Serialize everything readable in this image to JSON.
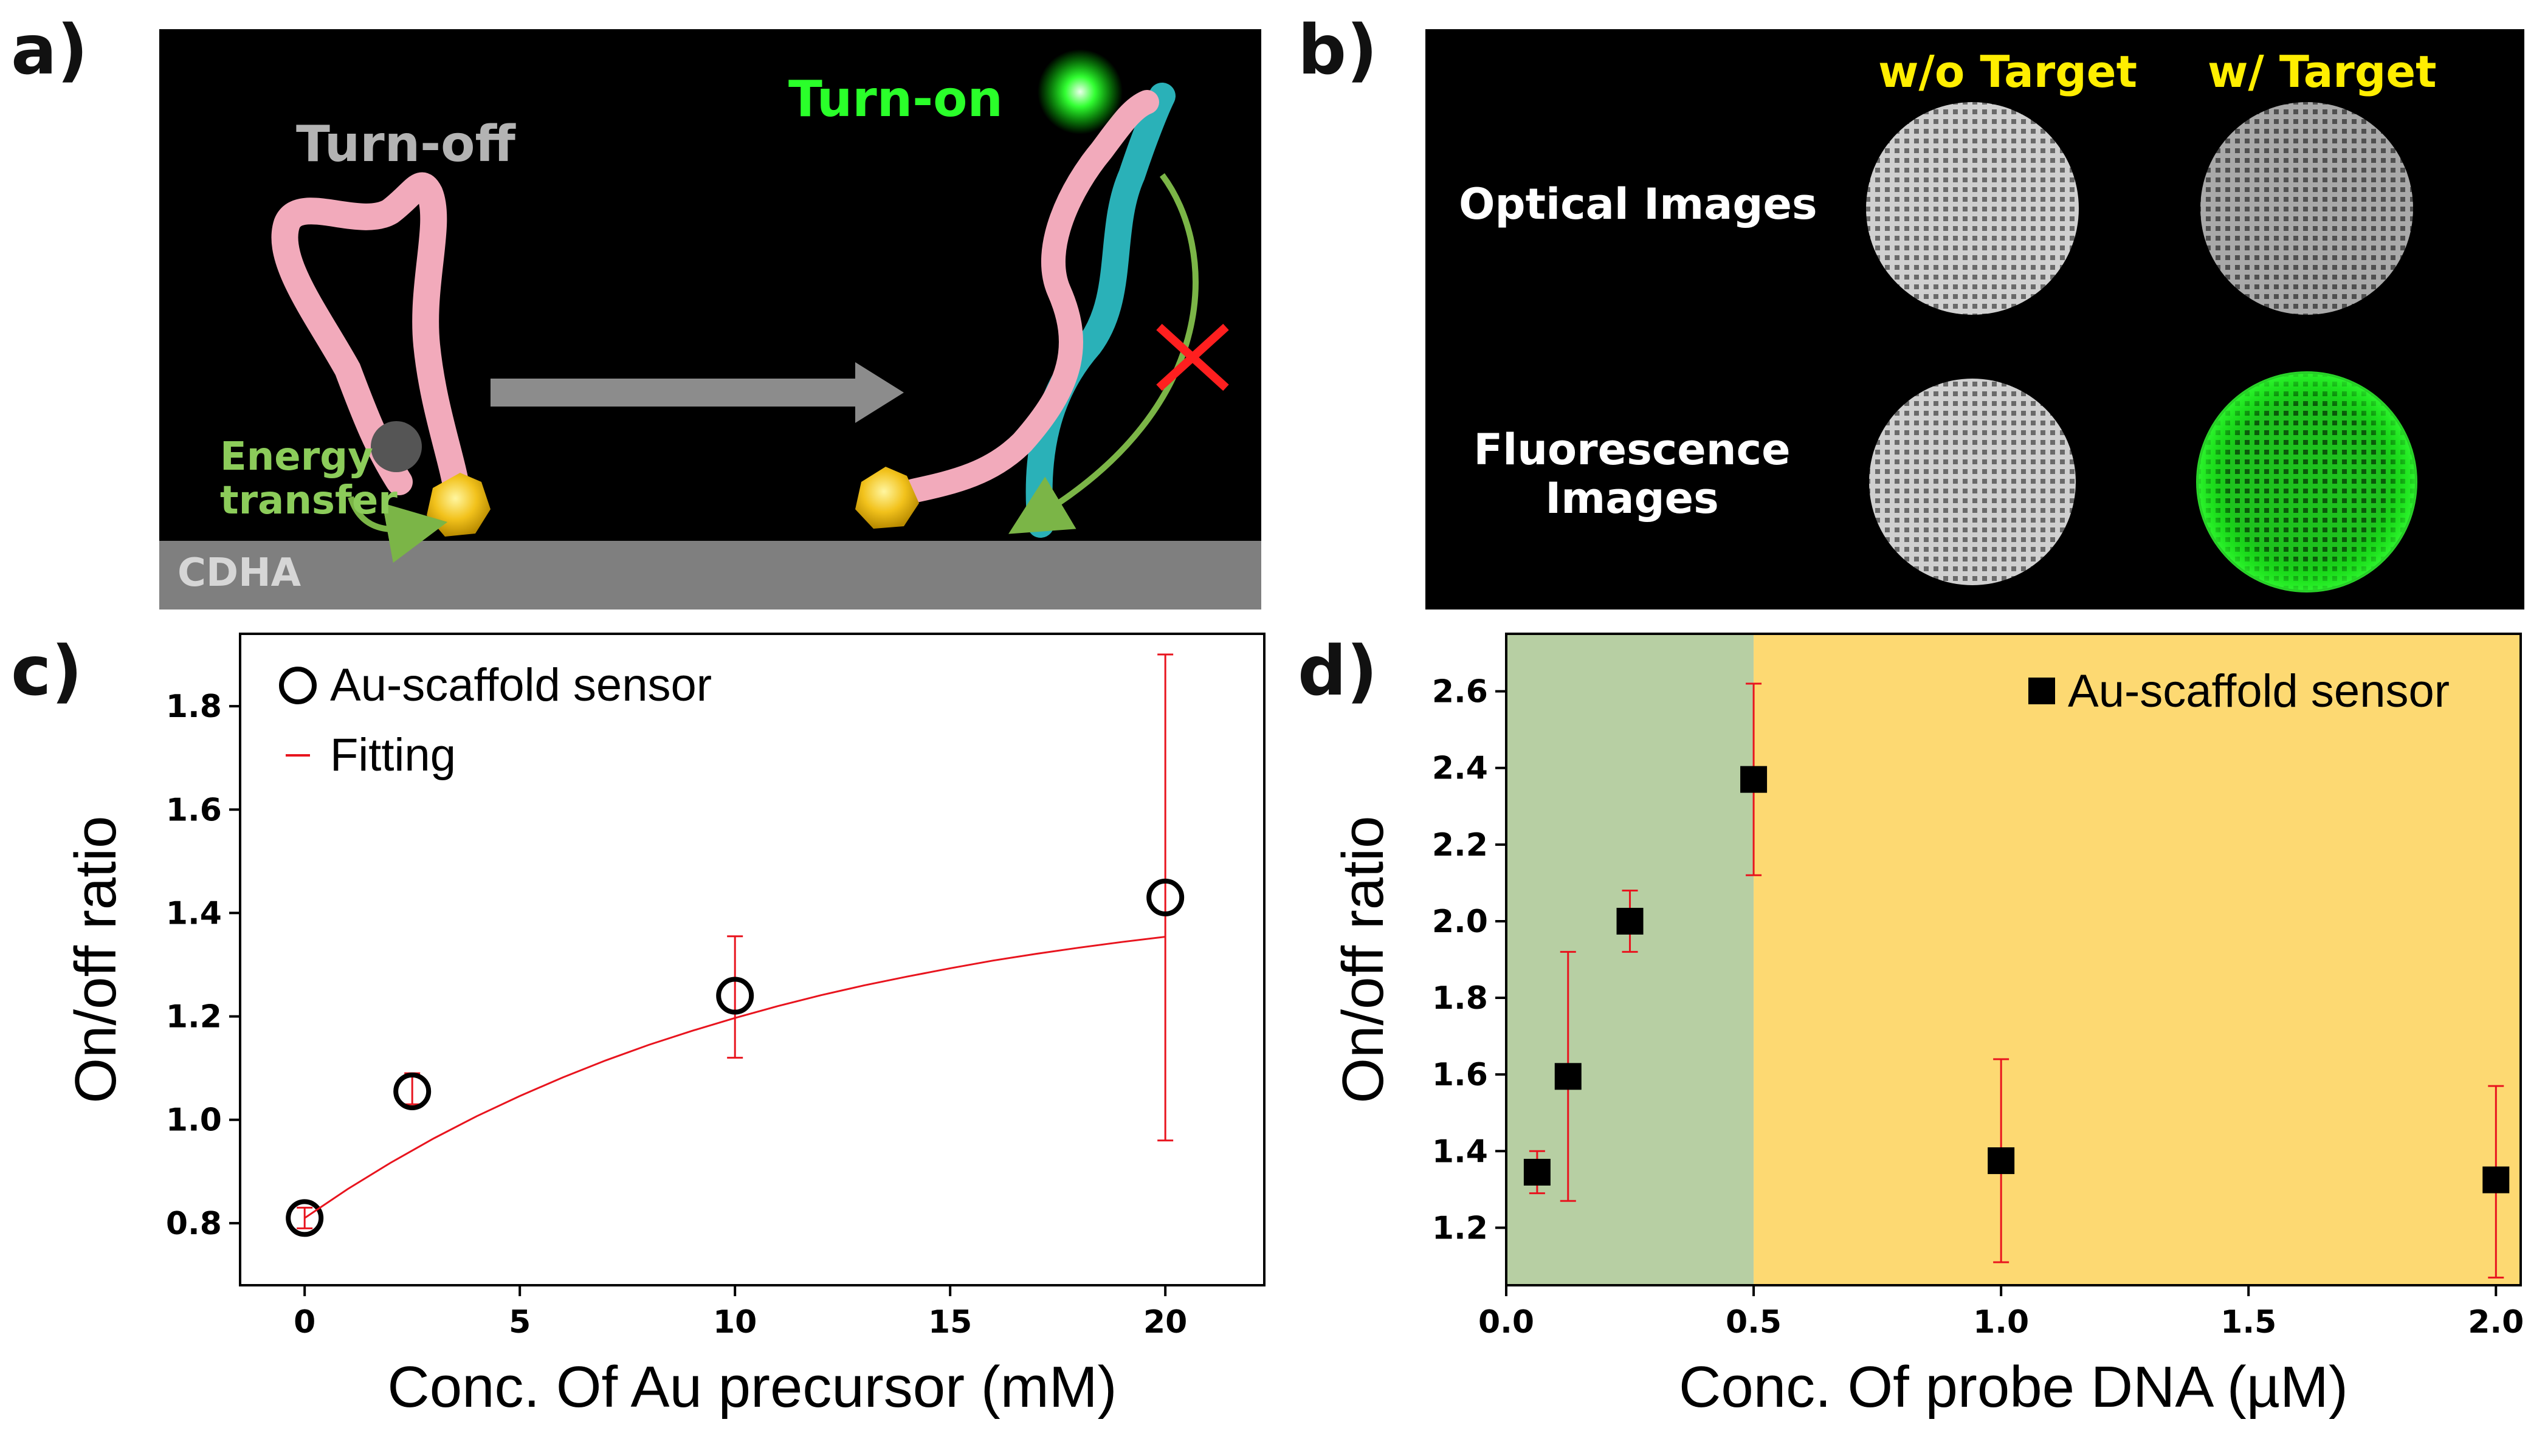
{
  "panel_a": {
    "letter": "a)",
    "turn_off": "Turn-off",
    "turn_on": "Turn-on",
    "energy_line1": "Energy",
    "energy_line2": "transfer",
    "substrate": "CDHA"
  },
  "panel_b": {
    "letter": "b)",
    "col_without": "w/o Target",
    "col_with": "w/ Target",
    "row_optical": "Optical Images",
    "row_fluor_line1": "Fluorescence",
    "row_fluor_line2": "Images"
  },
  "colors": {
    "label_yellow": "#ffee00",
    "turn_on_green": "#2aff2a",
    "energy_green": "#8ccc5a",
    "turn_off_gray": "#b3b3b3",
    "fit_red": "#e8141e",
    "region_green": "#b7cfa3",
    "region_yellow": "#fdd972"
  },
  "chart_data": [
    {
      "panel": "c)",
      "type": "scatter",
      "title": "",
      "xlabel": "Conc. Of Au precursor (mM)",
      "ylabel": "On/off ratio",
      "xlim": [
        -1.5,
        22.3
      ],
      "ylim": [
        0.68,
        1.94
      ],
      "xticks": [
        0,
        5,
        10,
        15,
        20
      ],
      "yticks": [
        0.8,
        1.0,
        1.2,
        1.4,
        1.6,
        1.8
      ],
      "legend": [
        "Au-scaffold sensor",
        "Fitting"
      ],
      "series": [
        {
          "name": "Au-scaffold sensor",
          "marker": "open-circle",
          "x": [
            0,
            2.5,
            10,
            20
          ],
          "y": [
            0.81,
            1.055,
            1.24,
            1.43
          ],
          "err_low": [
            0.79,
            1.03,
            1.12,
            0.96
          ],
          "err_high": [
            0.83,
            1.09,
            1.355,
            1.9
          ]
        },
        {
          "name": "Fitting",
          "line": "solid",
          "x": [
            0,
            1,
            2,
            3,
            4,
            5,
            6,
            7,
            8,
            9,
            10,
            11,
            12,
            13,
            14,
            15,
            16,
            17,
            18,
            19,
            20
          ],
          "y": [
            0.81,
            0.866,
            0.917,
            0.964,
            1.007,
            1.046,
            1.082,
            1.115,
            1.145,
            1.172,
            1.197,
            1.22,
            1.241,
            1.26,
            1.277,
            1.293,
            1.308,
            1.321,
            1.333,
            1.344,
            1.354
          ]
        }
      ]
    },
    {
      "panel": "d)",
      "type": "scatter",
      "title": "",
      "xlabel": "Conc. Of probe DNA (µM)",
      "ylabel": "On/off ratio",
      "xlim": [
        0.0,
        2.05
      ],
      "ylim": [
        1.05,
        2.75
      ],
      "xticks": [
        0.0,
        0.5,
        1.0,
        1.5,
        2.0
      ],
      "xtick_labels": [
        "0.0",
        "0.5",
        "1.0",
        "1.5",
        "2.0"
      ],
      "yticks": [
        1.2,
        1.4,
        1.6,
        1.8,
        2.0,
        2.2,
        2.4,
        2.6
      ],
      "ytick_labels": [
        "1.2",
        "1.4",
        "1.6",
        "1.8",
        "2.0",
        "2.2",
        "2.4",
        "2.6"
      ],
      "legend": [
        "Au-scaffold sensor"
      ],
      "regions": [
        {
          "from": 0.0,
          "to": 0.5,
          "color": "#b7cfa3"
        },
        {
          "from": 0.5,
          "to": 2.05,
          "color": "#fdd972"
        }
      ],
      "series": [
        {
          "name": "Au-scaffold sensor",
          "marker": "filled-square",
          "x": [
            0.0625,
            0.125,
            0.25,
            0.5,
            1.0,
            2.0
          ],
          "y": [
            1.345,
            1.595,
            2.0,
            2.37,
            1.375,
            1.325
          ],
          "err_low": [
            1.29,
            1.27,
            1.92,
            2.12,
            1.11,
            1.07
          ],
          "err_high": [
            1.4,
            1.92,
            2.08,
            2.62,
            1.64,
            1.57
          ]
        }
      ]
    }
  ]
}
